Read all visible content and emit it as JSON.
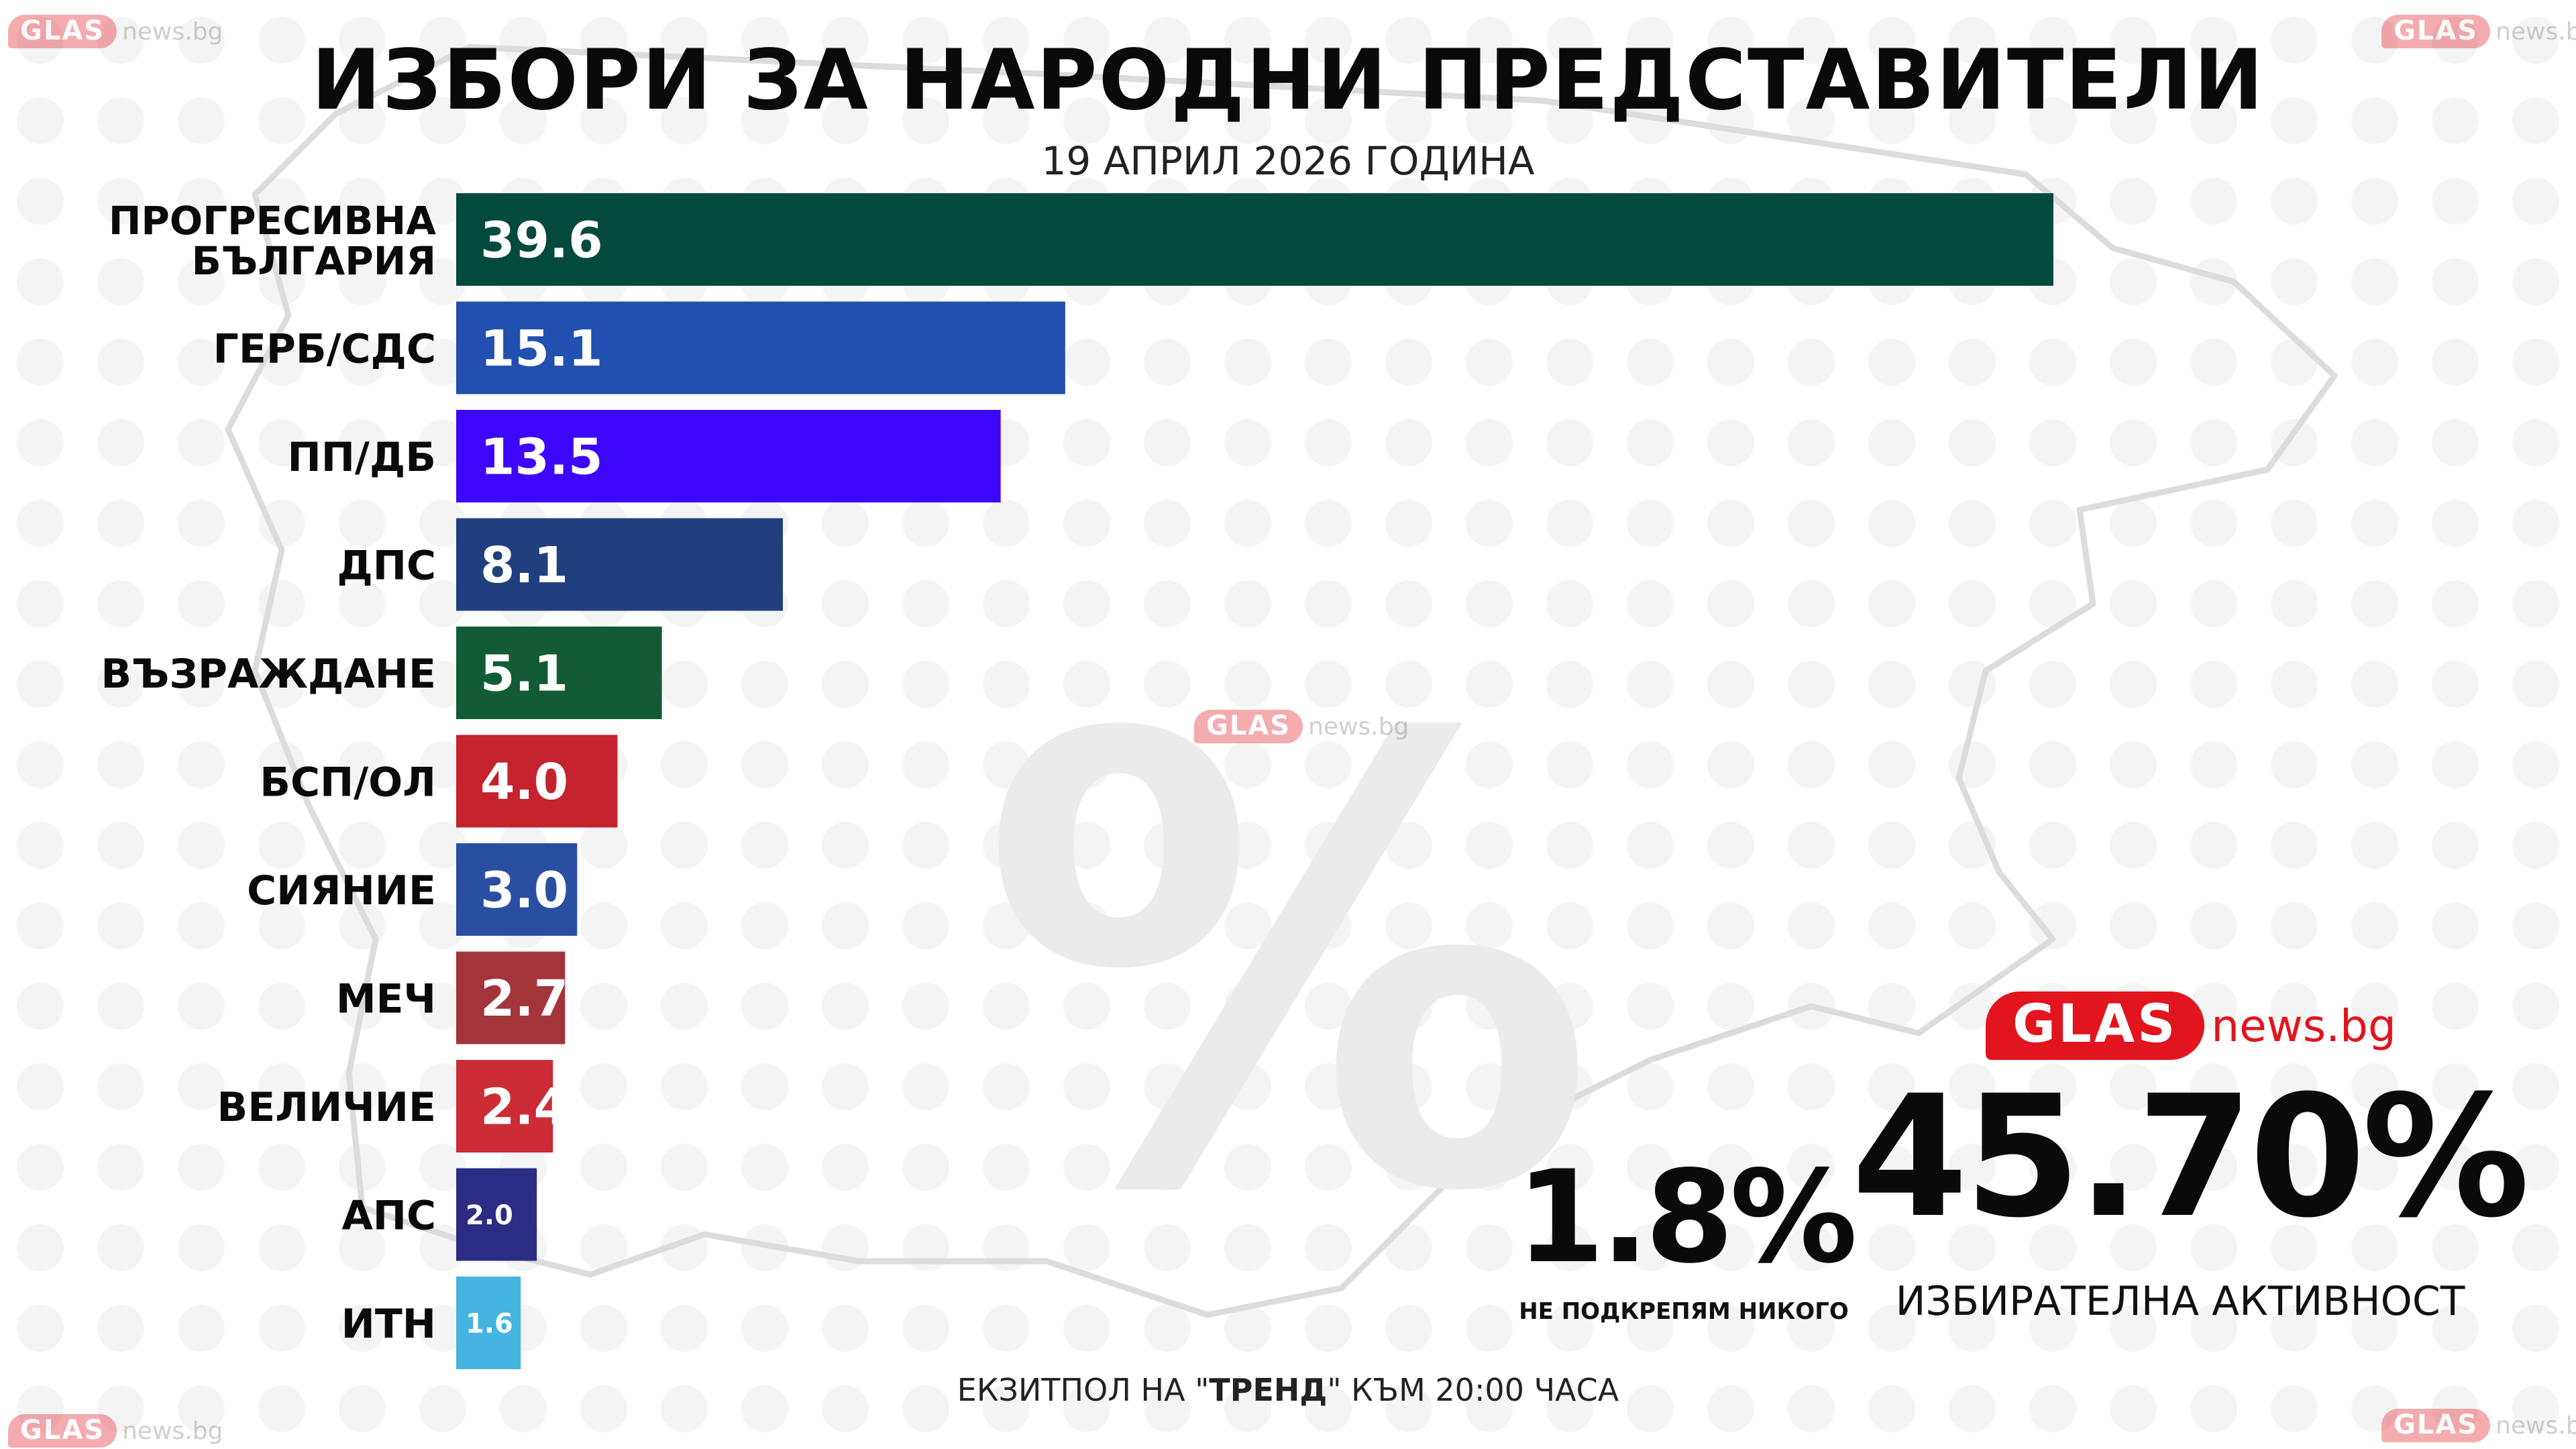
{
  "header": {
    "title": "ИЗБОРИ ЗА НАРОДНИ ПРЕДСТАВИТЕЛИ",
    "subtitle": "19 АПРИЛ 2026 ГОДИНА"
  },
  "watermark": {
    "pill": "GLAS",
    "suffix": "news.bg"
  },
  "brand": {
    "pill": "GLAS",
    "suffix": "news.bg",
    "color": "#e2141e"
  },
  "background_symbol": "%",
  "chart_data": {
    "type": "bar",
    "orientation": "horizontal",
    "categories": [
      "ПРОГРЕСИВНА БЪЛГАРИЯ",
      "ГЕРБ/СДС",
      "ПП/ДБ",
      "ДПС",
      "ВЪЗРАЖДАНЕ",
      "БСП/ОЛ",
      "СИЯНИЕ",
      "МЕЧ",
      "ВЕЛИЧИЕ",
      "АПС",
      "ИТН"
    ],
    "values": [
      39.6,
      15.1,
      13.5,
      8.1,
      5.1,
      4.0,
      3.0,
      2.7,
      2.4,
      2.0,
      1.6
    ],
    "value_labels": [
      "39.6",
      "15.1",
      "13.5",
      "8.1",
      "5.1",
      "4.0",
      "3.0",
      "2.7",
      "2.4",
      "2.0",
      "1.6"
    ],
    "colors": [
      "#034a3d",
      "#2150b0",
      "#3d07fb",
      "#213f7e",
      "#135b37",
      "#c4222d",
      "#2a4fa2",
      "#a3353a",
      "#cc2c36",
      "#2d2c84",
      "#45b4e0"
    ],
    "xlim": [
      0,
      40
    ],
    "grid": false,
    "legend": "none"
  },
  "stats": {
    "turnout_value": "45.70%",
    "turnout_label": "ИЗБИРАТЕЛНА АКТИВНОСТ",
    "none_value": "1.8%",
    "none_label": "НЕ ПОДКРЕПЯМ НИКОГО"
  },
  "footnote": {
    "prefix": "ЕКЗИТПОЛ НА \"",
    "source": "ТРЕНД",
    "suffix": "\" КЪМ 20:00 ЧАСА"
  }
}
